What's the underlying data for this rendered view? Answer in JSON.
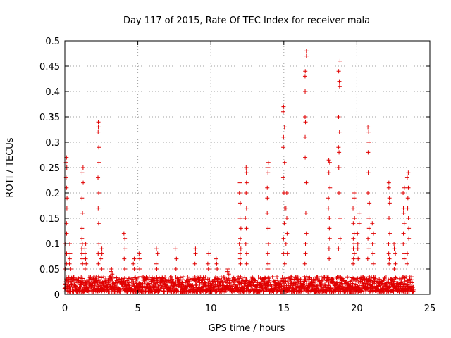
{
  "chart_data": {
    "type": "scatter",
    "title": "Day 117 of 2015, Rate Of TEC Index for receiver mala",
    "xlabel": "GPS time / hours",
    "ylabel": "ROTI / TECUs",
    "xlim": [
      0,
      25
    ],
    "ylim": [
      0,
      0.5
    ],
    "xticks": [
      0,
      5,
      10,
      15,
      20,
      25
    ],
    "yticks": [
      0,
      0.05,
      0.1,
      0.15,
      0.2,
      0.25,
      0.3,
      0.35,
      0.4,
      0.45,
      0.5
    ],
    "grid": true,
    "marker": "+",
    "color": "#e00000",
    "series": [
      {
        "name": "ROTI",
        "peaks": [
          {
            "x": 0.1,
            "values": [
              0.27,
              0.26,
              0.25,
              0.23,
              0.21,
              0.19,
              0.17,
              0.14,
              0.12,
              0.1,
              0.08,
              0.06,
              0.05
            ]
          },
          {
            "x": 0.35,
            "values": [
              0.1,
              0.08,
              0.07,
              0.06,
              0.05
            ]
          },
          {
            "x": 1.2,
            "values": [
              0.25,
              0.24,
              0.22,
              0.19,
              0.16,
              0.13,
              0.11,
              0.1,
              0.09,
              0.08,
              0.07,
              0.06
            ]
          },
          {
            "x": 1.4,
            "values": [
              0.1,
              0.09,
              0.08,
              0.07,
              0.06,
              0.05
            ]
          },
          {
            "x": 2.3,
            "values": [
              0.34,
              0.33,
              0.32,
              0.29,
              0.26,
              0.23,
              0.2,
              0.17,
              0.14,
              0.1,
              0.08,
              0.06
            ]
          },
          {
            "x": 2.5,
            "values": [
              0.09,
              0.08,
              0.07,
              0.05
            ]
          },
          {
            "x": 3.2,
            "values": [
              0.05,
              0.045,
              0.04
            ]
          },
          {
            "x": 4.1,
            "values": [
              0.12,
              0.11,
              0.09,
              0.07,
              0.05
            ]
          },
          {
            "x": 4.7,
            "values": [
              0.07,
              0.06,
              0.05
            ]
          },
          {
            "x": 5.1,
            "values": [
              0.08,
              0.07,
              0.05
            ]
          },
          {
            "x": 6.3,
            "values": [
              0.09,
              0.08,
              0.06,
              0.05
            ]
          },
          {
            "x": 7.6,
            "values": [
              0.09,
              0.07,
              0.05
            ]
          },
          {
            "x": 8.9,
            "values": [
              0.09,
              0.08,
              0.06
            ]
          },
          {
            "x": 9.8,
            "values": [
              0.08,
              0.06,
              0.05
            ]
          },
          {
            "x": 10.4,
            "values": [
              0.07,
              0.06,
              0.05
            ]
          },
          {
            "x": 11.2,
            "values": [
              0.05,
              0.045,
              0.04
            ]
          },
          {
            "x": 12.0,
            "values": [
              0.22,
              0.2,
              0.18,
              0.15,
              0.13,
              0.11,
              0.1,
              0.09,
              0.08,
              0.07,
              0.06
            ]
          },
          {
            "x": 12.4,
            "values": [
              0.25,
              0.24,
              0.22,
              0.2,
              0.17,
              0.15,
              0.13,
              0.1,
              0.08,
              0.06
            ]
          },
          {
            "x": 13.9,
            "values": [
              0.26,
              0.25,
              0.24,
              0.21,
              0.19,
              0.16,
              0.13,
              0.1,
              0.08,
              0.06,
              0.05
            ]
          },
          {
            "x": 15.0,
            "values": [
              0.37,
              0.36,
              0.33,
              0.31,
              0.29,
              0.26,
              0.23,
              0.2,
              0.17,
              0.14,
              0.11,
              0.08,
              0.06
            ]
          },
          {
            "x": 15.2,
            "values": [
              0.2,
              0.17,
              0.15,
              0.12,
              0.1,
              0.08
            ]
          },
          {
            "x": 16.5,
            "values": [
              0.48,
              0.47,
              0.44,
              0.43,
              0.4,
              0.35,
              0.34,
              0.31,
              0.27,
              0.22,
              0.16,
              0.12,
              0.1,
              0.08,
              0.06
            ]
          },
          {
            "x": 18.1,
            "values": [
              0.265,
              0.26,
              0.24,
              0.21,
              0.19,
              0.17,
              0.15,
              0.13,
              0.11,
              0.09,
              0.07
            ]
          },
          {
            "x": 18.8,
            "values": [
              0.46,
              0.44,
              0.42,
              0.41,
              0.35,
              0.32,
              0.29,
              0.28,
              0.25,
              0.2,
              0.15,
              0.11,
              0.09
            ]
          },
          {
            "x": 19.8,
            "values": [
              0.2,
              0.19,
              0.17,
              0.15,
              0.14,
              0.12,
              0.11,
              0.1,
              0.09,
              0.08,
              0.07,
              0.06
            ]
          },
          {
            "x": 20.1,
            "values": [
              0.16,
              0.14,
              0.12,
              0.1,
              0.09,
              0.07
            ]
          },
          {
            "x": 20.8,
            "values": [
              0.33,
              0.32,
              0.3,
              0.28,
              0.24,
              0.2,
              0.18,
              0.15,
              0.13,
              0.11,
              0.09,
              0.07
            ]
          },
          {
            "x": 21.1,
            "values": [
              0.14,
              0.12,
              0.1,
              0.08,
              0.06
            ]
          },
          {
            "x": 22.2,
            "values": [
              0.22,
              0.21,
              0.19,
              0.18,
              0.15,
              0.12,
              0.1,
              0.08,
              0.07,
              0.06
            ]
          },
          {
            "x": 22.6,
            "values": [
              0.1,
              0.09,
              0.08,
              0.06,
              0.05
            ]
          },
          {
            "x": 23.2,
            "values": [
              0.21,
              0.2,
              0.17,
              0.16,
              0.14,
              0.12,
              0.1,
              0.08,
              0.07
            ]
          },
          {
            "x": 23.5,
            "values": [
              0.24,
              0.23,
              0.21,
              0.19,
              0.17,
              0.15,
              0.13,
              0.11,
              0.08,
              0.06
            ]
          }
        ],
        "baseline": {
          "x_range": [
            0,
            23.9
          ],
          "y_range": [
            0.005,
            0.035
          ]
        }
      }
    ]
  }
}
